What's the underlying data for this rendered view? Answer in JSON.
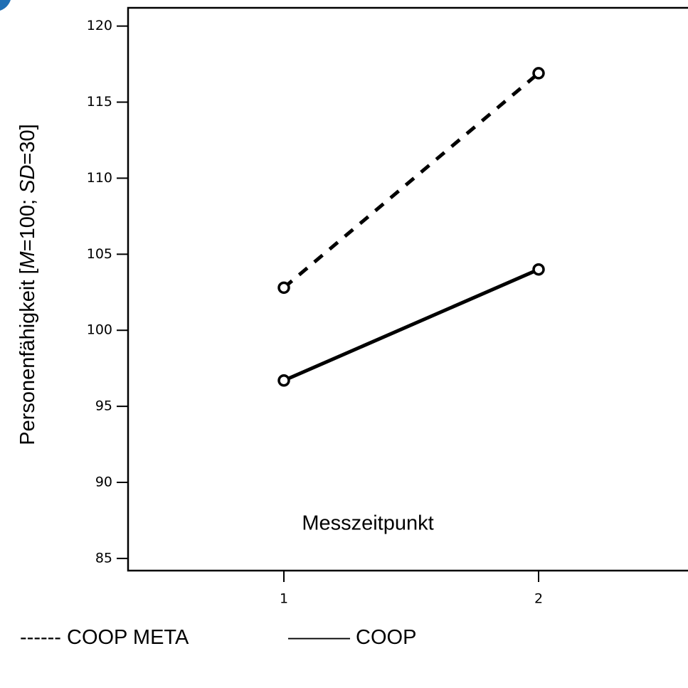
{
  "chart_data": {
    "type": "line",
    "categories": [
      "1",
      "2"
    ],
    "series": [
      {
        "name": "COOP META",
        "values": [
          102.8,
          116.9
        ],
        "style": "dashed",
        "color": "#000000"
      },
      {
        "name": "COOP",
        "values": [
          96.7,
          104.0
        ],
        "style": "solid",
        "color": "#000000"
      }
    ],
    "xlabel": "Messzeitpunkt",
    "ylabel": [
      "Personenfähigkeit [",
      "M",
      "=100; ",
      "SD",
      "=30]"
    ],
    "yticks": [
      85,
      90,
      95,
      100,
      105,
      110,
      115,
      120
    ],
    "ylim": [
      84.2,
      121.2
    ],
    "grid": false,
    "legend_position": "bottom"
  },
  "legend": {
    "meta_label": "------ COOP META",
    "coop_label": "——— COOP"
  }
}
